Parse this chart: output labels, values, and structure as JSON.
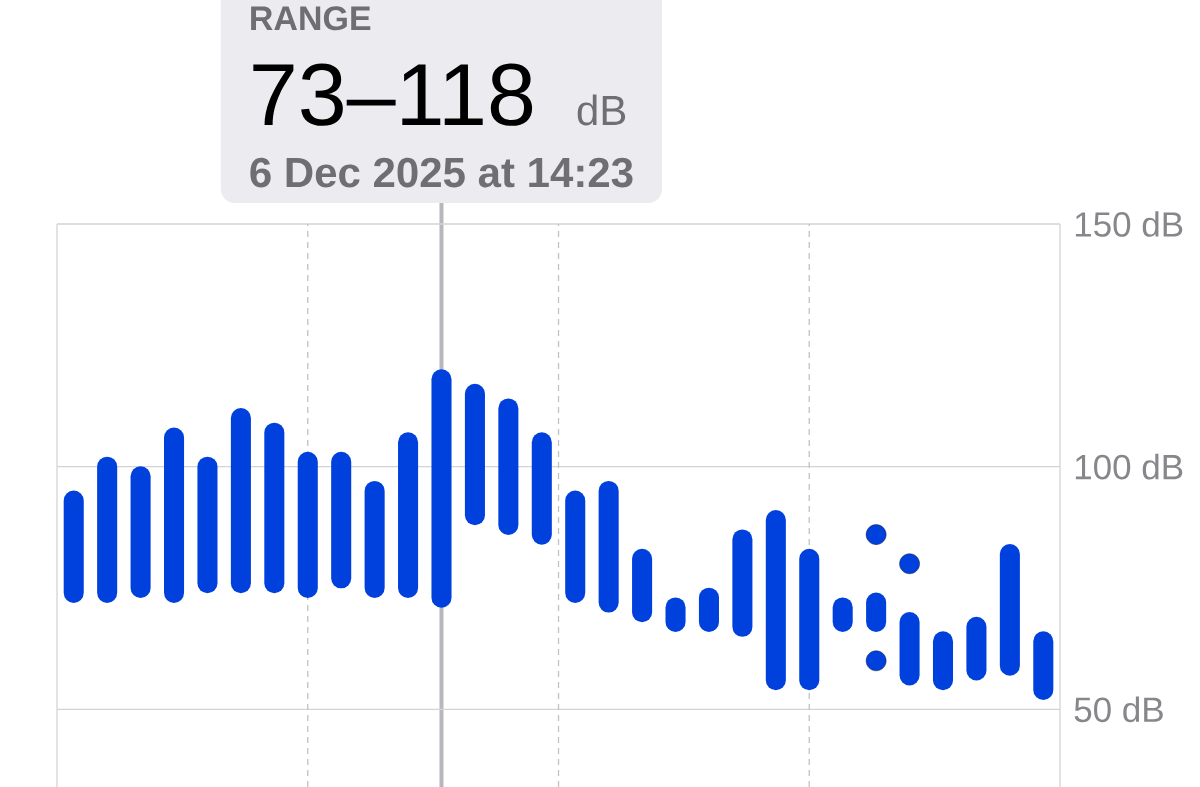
{
  "chart_data": {
    "type": "bar",
    "categories": [
      null,
      null,
      null,
      null,
      null,
      null,
      null,
      null,
      null,
      null,
      null,
      null,
      null,
      null,
      null,
      null,
      null,
      null,
      null,
      null,
      null,
      null,
      null,
      null,
      null,
      null,
      null,
      null,
      null,
      null
    ],
    "series": [
      {
        "color": "#0040dd",
        "base": [
          74,
          74,
          75,
          74,
          76,
          76,
          76,
          75,
          77,
          75,
          75,
          73,
          90,
          88,
          86,
          74,
          72,
          70,
          68,
          68,
          67,
          56,
          56,
          68,
          68,
          57,
          56,
          58,
          59,
          54
        ],
        "values": [
          19,
          26,
          23,
          32,
          24,
          34,
          31,
          26,
          24,
          20,
          30,
          45,
          25,
          24,
          19,
          19,
          23,
          11,
          3,
          5,
          18,
          33,
          25,
          3,
          4,
          11,
          8,
          9,
          23,
          10
        ]
      },
      {
        "type": "scatter",
        "marker": "circle",
        "color": "#0040dd",
        "values": [
          null,
          null,
          null,
          null,
          null,
          null,
          null,
          null,
          null,
          null,
          null,
          null,
          null,
          null,
          null,
          null,
          null,
          null,
          null,
          null,
          null,
          null,
          null,
          null,
          86,
          80,
          null,
          null,
          null,
          null
        ]
      },
      {
        "type": "scatter",
        "marker": "circle",
        "color": "#0040dd",
        "values": [
          null,
          null,
          null,
          null,
          null,
          null,
          null,
          null,
          null,
          null,
          null,
          null,
          null,
          null,
          null,
          null,
          null,
          null,
          null,
          null,
          null,
          null,
          null,
          null,
          60,
          null,
          null,
          null,
          null,
          null
        ]
      }
    ],
    "ylim": [
      34,
      150
    ],
    "yticks": [
      {
        "value": 50,
        "label": "50 dB"
      },
      {
        "value": 100,
        "label": "100 dB"
      },
      {
        "value": 150,
        "label": "150 dB"
      }
    ],
    "grid": true,
    "tick_labels": "y",
    "annotations": [
      "RANGE",
      "73–118",
      "dB",
      "6 Dec 2025 at 14:23"
    ]
  }
}
